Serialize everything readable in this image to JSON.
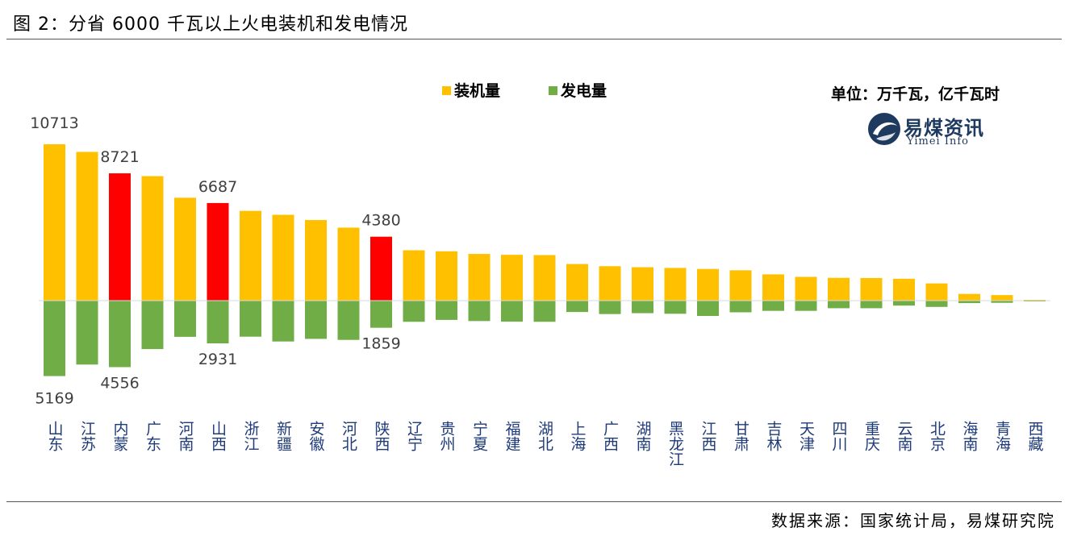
{
  "figure_title": "图 2：分省 6000 千瓦以上火电装机和发电情况",
  "unit_note": "单位：万千瓦，亿千瓦时",
  "logo": {
    "text": "易煤资讯",
    "subtext": "Yimei Info"
  },
  "source": "数据来源：国家统计局，易煤研究院",
  "colors": {
    "capacity": "#FFC000",
    "generation": "#70AD47",
    "highlight": "#FF0000",
    "axis_label": "#1F3B7A"
  },
  "chart_data": {
    "type": "bar",
    "categories": [
      "山东",
      "江苏",
      "内蒙",
      "广东",
      "河南",
      "山西",
      "浙江",
      "新疆",
      "安徽",
      "河北",
      "陕西",
      "辽宁",
      "贵州",
      "宁夏",
      "福建",
      "湖北",
      "上海",
      "广西",
      "湖南",
      "黑龙江",
      "江西",
      "甘肃",
      "吉林",
      "天津",
      "四川",
      "重庆",
      "云南",
      "北京",
      "海南",
      "青海",
      "西藏"
    ],
    "series": [
      {
        "name": "装机量",
        "values": [
          10713,
          10190,
          8721,
          8530,
          7050,
          6687,
          6150,
          5880,
          5520,
          5000,
          4380,
          3450,
          3380,
          3200,
          3140,
          3120,
          2510,
          2360,
          2290,
          2240,
          2170,
          2080,
          1800,
          1630,
          1560,
          1550,
          1500,
          1180,
          460,
          380,
          30
        ]
      },
      {
        "name": "发电量",
        "values": [
          5169,
          4380,
          4556,
          3320,
          2480,
          2931,
          2470,
          2800,
          2620,
          2690,
          1859,
          1450,
          1320,
          1400,
          1440,
          1450,
          780,
          920,
          860,
          900,
          1050,
          800,
          700,
          700,
          520,
          520,
          340,
          430,
          170,
          150,
          10
        ]
      }
    ],
    "highlight_categories": [
      "内蒙",
      "山西",
      "陕西"
    ],
    "data_labels": [
      {
        "category": "山东",
        "series": "装机量",
        "text": "10713"
      },
      {
        "category": "内蒙",
        "series": "装机量",
        "text": "8721"
      },
      {
        "category": "山西",
        "series": "装机量",
        "text": "6687"
      },
      {
        "category": "陕西",
        "series": "装机量",
        "text": "4380"
      },
      {
        "category": "山东",
        "series": "发电量",
        "text": "5169"
      },
      {
        "category": "内蒙",
        "series": "发电量",
        "text": "4556"
      },
      {
        "category": "山西",
        "series": "发电量",
        "text": "2931"
      },
      {
        "category": "陕西",
        "series": "发电量",
        "text": "1859"
      }
    ],
    "legend": {
      "placement": "top-center"
    },
    "grid": false
  }
}
